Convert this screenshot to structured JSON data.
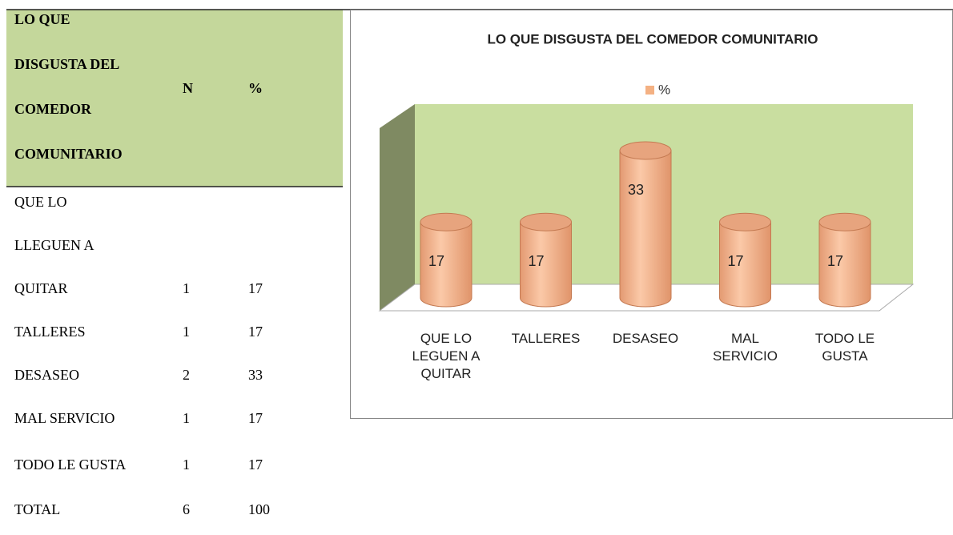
{
  "table": {
    "header": [
      "LO QUE DISGUSTA DEL COMEDOR COMUNITARIO",
      "N",
      "%"
    ],
    "rows": [
      [
        "QUE LO LLEGUEN A QUITAR",
        1,
        17
      ],
      [
        "TALLERES",
        1,
        17
      ],
      [
        "DESASEO",
        2,
        33
      ],
      [
        "MAL SERVICIO",
        1,
        17
      ],
      [
        "TODO LE GUSTA",
        1,
        17
      ],
      [
        "TOTAL",
        6,
        100
      ]
    ]
  },
  "chart_data": {
    "type": "bar",
    "title": "LO QUE DISGUSTA DEL COMEDOR COMUNITARIO",
    "categories": [
      "QUE LO LEGUEN A QUITAR",
      "TALLERES",
      "DESASEO",
      "MAL SERVICIO",
      "TODO LE GUSTA"
    ],
    "series": [
      {
        "name": "%",
        "color": "#f4b183",
        "values": [
          17,
          17,
          33,
          17,
          17
        ]
      }
    ]
  }
}
